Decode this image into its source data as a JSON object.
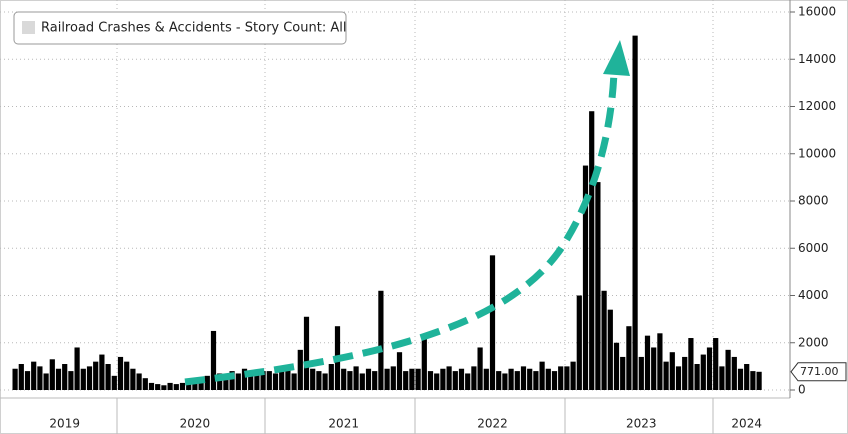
{
  "chart_data": {
    "type": "bar",
    "series": [
      {
        "name": "Railroad Crashes & Accidents - Story Count: All",
        "color": "#000000",
        "values": [
          900,
          1100,
          800,
          1200,
          1000,
          700,
          1300,
          900,
          1100,
          800,
          1800,
          900,
          1000,
          1200,
          1500,
          1100,
          600,
          1400,
          1200,
          900,
          700,
          500,
          300,
          250,
          200,
          300,
          250,
          300,
          350,
          400,
          500,
          600,
          2500,
          700,
          600,
          800,
          700,
          900,
          650,
          750,
          800,
          800,
          700,
          900,
          1000,
          700,
          1700,
          3100,
          900,
          800,
          700,
          1100,
          2700,
          900,
          800,
          1000,
          700,
          900,
          800,
          4200,
          900,
          1000,
          1600,
          800,
          900,
          900,
          2300,
          800,
          700,
          900,
          1000,
          800,
          900,
          700,
          1000,
          1800,
          900,
          5700,
          800,
          700,
          900,
          800,
          1000,
          900,
          800,
          1200,
          900,
          800,
          1000,
          1000,
          1200,
          4000,
          9500,
          11800,
          8800,
          4200,
          3400,
          2000,
          1400,
          2700,
          15000,
          1400,
          2300,
          1800,
          2400,
          1200,
          1600,
          1000,
          1400,
          2200,
          1100,
          1500,
          1800,
          2200,
          1000,
          1700,
          1400,
          900,
          1100,
          800,
          771
        ]
      }
    ],
    "categories": [
      null,
      null,
      null,
      null,
      null,
      null,
      null,
      null,
      "2019",
      null,
      null,
      null,
      null,
      null,
      null,
      null,
      null,
      null,
      null,
      null,
      null,
      null,
      null,
      null,
      null,
      null,
      null,
      null,
      null,
      "2020",
      null,
      null,
      null,
      null,
      null,
      null,
      null,
      null,
      null,
      null,
      null,
      null,
      null,
      null,
      null,
      null,
      null,
      null,
      null,
      null,
      null,
      null,
      null,
      "2021",
      null,
      null,
      null,
      null,
      null,
      null,
      null,
      null,
      null,
      null,
      null,
      null,
      null,
      null,
      null,
      null,
      null,
      null,
      null,
      null,
      null,
      null,
      null,
      "2022",
      null,
      null,
      null,
      null,
      null,
      null,
      null,
      null,
      null,
      null,
      null,
      null,
      null,
      null,
      null,
      null,
      null,
      null,
      null,
      null,
      null,
      null,
      null,
      "2023",
      null,
      null,
      null,
      null,
      null,
      null,
      null,
      null,
      null,
      null,
      null,
      null,
      null,
      null,
      null,
      null,
      "2024",
      null,
      null
    ],
    "ylim": [
      0,
      16000
    ],
    "yticks": [
      0,
      2000,
      4000,
      6000,
      8000,
      10000,
      12000,
      14000,
      16000
    ],
    "grid": true,
    "last_value": {
      "value": 771,
      "label": "771.00"
    }
  }
}
